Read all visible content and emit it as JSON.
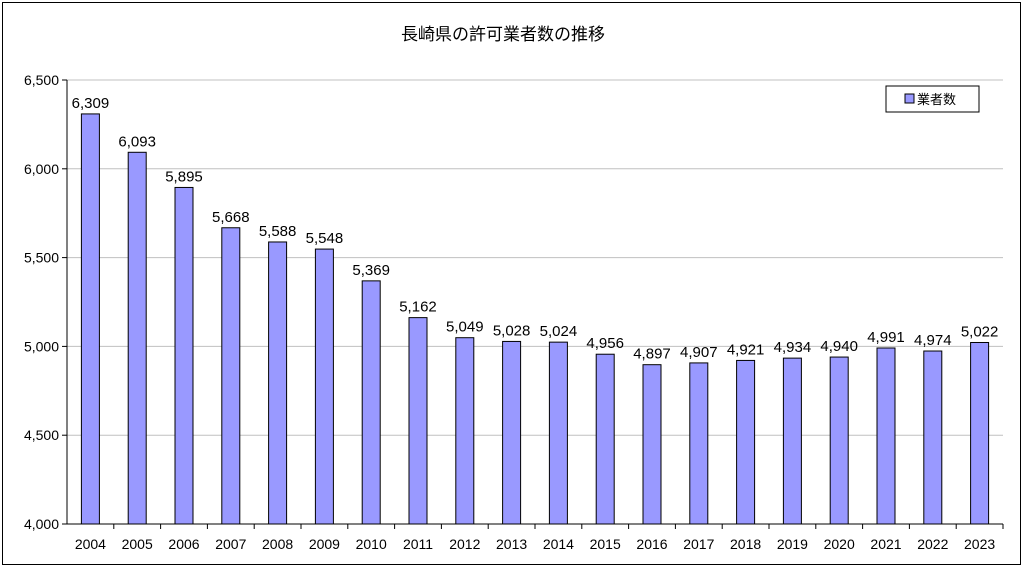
{
  "chart_data": {
    "type": "bar",
    "title": "長崎県の許可業者数の推移",
    "xlabel": "",
    "ylabel": "",
    "categories": [
      "2004",
      "2005",
      "2006",
      "2007",
      "2008",
      "2009",
      "2010",
      "2011",
      "2012",
      "2013",
      "2014",
      "2015",
      "2016",
      "2017",
      "2018",
      "2019",
      "2020",
      "2021",
      "2022",
      "2023"
    ],
    "series": [
      {
        "name": "業者数",
        "values": [
          6309,
          6093,
          5895,
          5668,
          5588,
          5548,
          5369,
          5162,
          5049,
          5028,
          5024,
          4956,
          4897,
          4907,
          4921,
          4934,
          4940,
          4991,
          4974,
          5022
        ],
        "value_labels": [
          "6,309",
          "6,093",
          "5,895",
          "5,668",
          "5,588",
          "5,548",
          "5,369",
          "5,162",
          "5,049",
          "5,028",
          "5,024",
          "4,956",
          "4,897",
          "4,907",
          "4,921",
          "4,934",
          "4,940",
          "4,991",
          "4,974",
          "5,022"
        ],
        "color": "#9999ff"
      }
    ],
    "ylim": [
      4000,
      6500
    ],
    "y_ticks": [
      4000,
      4500,
      5000,
      5500,
      6000,
      6500
    ],
    "y_tick_labels": [
      "4,000",
      "4,500",
      "5,000",
      "5,500",
      "6,000",
      "6,500"
    ],
    "grid": true,
    "gridline_color": "#c0c0c0",
    "legend_position": "top-right"
  }
}
